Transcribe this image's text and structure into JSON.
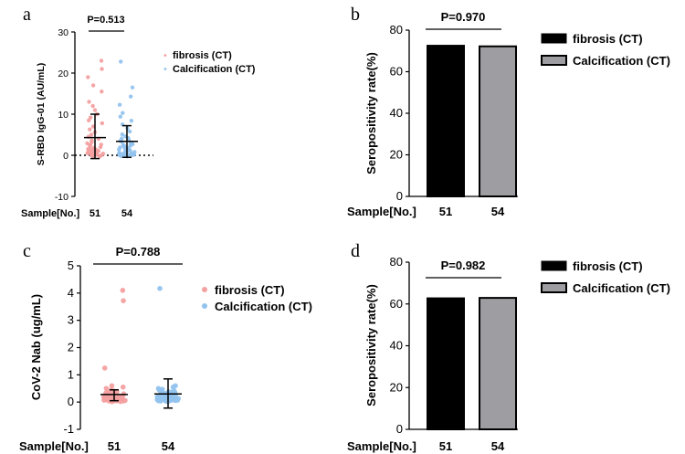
{
  "colors": {
    "fibrosis_dot": "#f4a0a0",
    "calcification_dot": "#92c3ee",
    "bar_fibrosis": "#000000",
    "bar_calcification": "#9e9ea2"
  },
  "chart_data": [
    {
      "panel": "a",
      "type": "scatter",
      "ylabel": "S-RBD IgG-01 (AU/mL)",
      "ylim": [
        -10,
        30
      ],
      "yticks": [
        "30",
        "20",
        "10",
        "0",
        "-10"
      ],
      "sample_label": "Sample[No.]",
      "sample_counts": [
        "51",
        "54"
      ],
      "pvalue": "P=0.513",
      "legend": [
        "fibrosis (CT)",
        "Calcification (CT)"
      ],
      "legend_placement": "top-right",
      "zero_line": "dotted",
      "series": [
        {
          "name": "fibrosis (CT)",
          "mean": 4.3,
          "sd_low": -0.8,
          "sd_high": 10.0,
          "values": [
            23,
            21,
            19,
            17,
            15.5,
            13,
            12,
            11,
            10,
            9.2,
            8.5,
            7.8,
            7,
            6.3,
            5.6,
            5,
            4.5,
            4,
            3.6,
            3.2,
            2.9,
            2.6,
            2.3,
            2,
            1.8,
            1.6,
            1.4,
            1.2,
            1,
            0.9,
            0.8,
            0.7,
            0.6,
            0.5,
            0.4,
            0.3,
            0.2,
            0.1,
            0.05,
            0,
            0,
            -0.1,
            -0.2,
            -0.3,
            -0.4,
            0.3,
            0.5,
            0.7,
            1.1,
            1.5,
            2.5
          ]
        },
        {
          "name": "Calcification (CT)",
          "mean": 3.4,
          "sd_low": -0.5,
          "sd_high": 7.2,
          "values": [
            22.8,
            16.5,
            14.3,
            12.3,
            10.3,
            9.4,
            8.4,
            7.5,
            6.6,
            5.8,
            5.1,
            4.6,
            4.1,
            3.7,
            3.3,
            3.0,
            2.7,
            2.5,
            2.3,
            2.1,
            1.9,
            1.7,
            1.5,
            1.4,
            1.3,
            1.2,
            1.1,
            1.0,
            0.9,
            0.8,
            0.7,
            0.6,
            0.5,
            0.45,
            0.4,
            0.35,
            0.3,
            0.25,
            0.2,
            0.15,
            0.1,
            0.05,
            0,
            0,
            -0.1,
            -0.2,
            -0.3,
            0.6,
            0.9,
            1.6,
            2.2,
            2.8,
            3.5,
            4.2
          ]
        }
      ]
    },
    {
      "panel": "b",
      "type": "bar",
      "ylabel": "Seropositivity rate(%)",
      "ylim": [
        0,
        80
      ],
      "yticks": [
        "80",
        "60",
        "40",
        "20",
        "0"
      ],
      "sample_label": "Sample[No.]",
      "sample_counts": [
        "51",
        "54"
      ],
      "pvalue": "P=0.970",
      "legend": [
        "fibrosis (CT)",
        "Calcification (CT)"
      ],
      "legend_placement": "right",
      "values": [
        72.5,
        72.2
      ]
    },
    {
      "panel": "c",
      "type": "scatter",
      "ylabel": "CoV-2 Nab (ug/mL)",
      "ylim": [
        -1,
        5
      ],
      "yticks": [
        "5",
        "4",
        "3",
        "2",
        "1",
        "0",
        "-1"
      ],
      "sample_label": "Sample[No.]",
      "sample_counts": [
        "51",
        "54"
      ],
      "pvalue": "P=0.788",
      "legend": [
        "fibrosis (CT)",
        "Calcification (CT)"
      ],
      "legend_placement": "top-right",
      "series": [
        {
          "name": "fibrosis (CT)",
          "mean": 0.28,
          "sd_low": 0.05,
          "sd_high": 0.45,
          "values": [
            4.1,
            3.72,
            1.25,
            0.6,
            0.55,
            0.5,
            0.45,
            0.4,
            0.38,
            0.35,
            0.33,
            0.3,
            0.28,
            0.27,
            0.25,
            0.24,
            0.22,
            0.21,
            0.2,
            0.19,
            0.18,
            0.17,
            0.16,
            0.15,
            0.14,
            0.13,
            0.12,
            0.11,
            0.1,
            0.1,
            0.09,
            0.08,
            0.08,
            0.07,
            0.06,
            0.06,
            0.05,
            0.05,
            0.04,
            0.04,
            0.03,
            0.03,
            0.02,
            0.02,
            0.15,
            0.2,
            0.25,
            0.3,
            0.12,
            0.18,
            0.22
          ]
        },
        {
          "name": "Calcification (CT)",
          "mean": 0.3,
          "sd_low": -0.22,
          "sd_high": 0.85,
          "values": [
            4.17,
            0.6,
            0.55,
            0.5,
            0.47,
            0.44,
            0.42,
            0.4,
            0.38,
            0.36,
            0.34,
            0.32,
            0.3,
            0.29,
            0.28,
            0.27,
            0.26,
            0.25,
            0.24,
            0.23,
            0.22,
            0.21,
            0.2,
            0.19,
            0.18,
            0.17,
            0.16,
            0.15,
            0.14,
            0.13,
            0.12,
            0.11,
            0.1,
            0.1,
            0.09,
            0.09,
            0.08,
            0.08,
            0.07,
            0.07,
            0.06,
            0.06,
            0.05,
            0.05,
            0.04,
            0.04,
            0.03,
            0.03,
            0.2,
            0.25,
            0.3,
            0.35,
            0.15,
            0.1
          ]
        }
      ]
    },
    {
      "panel": "d",
      "type": "bar",
      "ylabel": "Seropositivity rate(%)",
      "ylim": [
        0,
        80
      ],
      "yticks": [
        "80",
        "60",
        "40",
        "20",
        "0"
      ],
      "sample_label": "Sample[No.]",
      "sample_counts": [
        "51",
        "54"
      ],
      "pvalue": "P=0.982",
      "legend": [
        "fibrosis (CT)",
        "Calcification (CT)"
      ],
      "legend_placement": "right",
      "values": [
        62.7,
        62.9
      ]
    }
  ]
}
